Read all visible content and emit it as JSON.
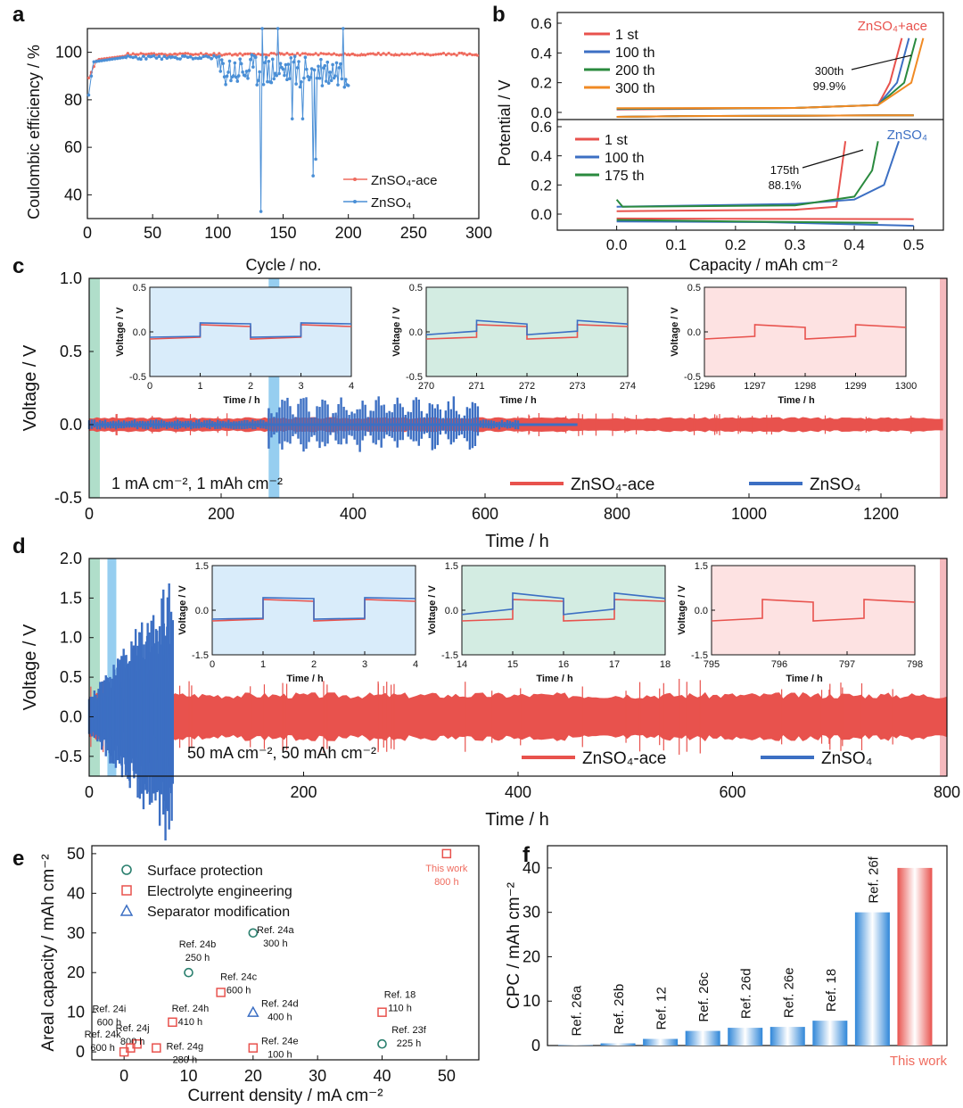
{
  "colors": {
    "red": "#e8524d",
    "blue": "#3c6fc3",
    "green": "#2a8a3e",
    "orange": "#f08a24",
    "teal": "#2a7f6e",
    "ce_red": "#ef6b5e",
    "ce_blue": "#4a8fd6"
  },
  "panel_a": {
    "label": "a",
    "xlabel": "Cycle / no.",
    "ylabel": "Coulombic efficiency / %",
    "xticks": [
      "0",
      "50",
      "100",
      "150",
      "200",
      "250",
      "300"
    ],
    "yticks": [
      "40",
      "60",
      "80",
      "100"
    ],
    "legend": [
      {
        "name": "ZnSO₄-ace"
      },
      {
        "name": "ZnSO₄"
      }
    ]
  },
  "panel_b": {
    "label": "b",
    "ylabel": "Potential / V",
    "xlabel": "Capacity / mAh cm⁻²",
    "xticks": [
      "0.0",
      "0.1",
      "0.2",
      "0.3",
      "0.4",
      "0.5"
    ],
    "top_yticks": [
      "0.0",
      "0.2",
      "0.4",
      "0.6"
    ],
    "bottom_yticks": [
      "0.0",
      "0.2",
      "0.4",
      "0.6"
    ],
    "top_title": "ZnSO₄+ace",
    "bottom_title": "ZnSO₄",
    "top_legend": [
      "1 st",
      "100 th",
      "200 th",
      "300 th"
    ],
    "bottom_legend": [
      "1 st",
      "100 th",
      "175 th"
    ],
    "top_annot": [
      "300th",
      "99.9%"
    ],
    "bottom_annot": [
      "175th",
      "88.1%"
    ]
  },
  "panel_c": {
    "label": "c",
    "ylabel": "Voltage / V",
    "xlabel": "Time / h",
    "xticks": [
      "0",
      "200",
      "400",
      "600",
      "800",
      "1000",
      "1200"
    ],
    "yticks": [
      "-0.5",
      "0.0",
      "0.5",
      "1.0"
    ],
    "condition": "1 mA cm⁻², 1 mAh cm⁻²",
    "legend": [
      "ZnSO₄-ace",
      "ZnSO₄"
    ],
    "insets": [
      {
        "xticks": [
          "0",
          "1",
          "2",
          "3",
          "4"
        ],
        "yticks": [
          "0.5",
          "0.0",
          "-0.5"
        ],
        "xlabel": "Time / h",
        "ylabel": "Voltage / V"
      },
      {
        "xticks": [
          "270",
          "271",
          "272",
          "273",
          "274"
        ],
        "yticks": [
          "0.5",
          "0.0",
          "-0.5"
        ],
        "xlabel": "Time / h",
        "ylabel": "Voltage / V"
      },
      {
        "xticks": [
          "1296",
          "1297",
          "1298",
          "1299",
          "1300"
        ],
        "yticks": [
          "0.5",
          "0.0",
          "-0.5"
        ],
        "xlabel": "Time / h",
        "ylabel": "Voltage / V"
      }
    ]
  },
  "panel_d": {
    "label": "d",
    "ylabel": "Voltage / V",
    "xlabel": "Time / h",
    "xticks": [
      "0",
      "200",
      "400",
      "600",
      "800"
    ],
    "yticks": [
      "-0.5",
      "0.0",
      "0.5",
      "1.0",
      "1.5",
      "2.0"
    ],
    "condition": "50 mA cm⁻², 50 mAh cm⁻²",
    "legend": [
      "ZnSO₄-ace",
      "ZnSO₄"
    ],
    "insets": [
      {
        "xticks": [
          "0",
          "1",
          "2",
          "3",
          "4"
        ],
        "yticks": [
          "1.5",
          "0.0",
          "-1.5"
        ],
        "xlabel": "Time / h",
        "ylabel": "Voltage / V"
      },
      {
        "xticks": [
          "14",
          "15",
          "16",
          "17",
          "18"
        ],
        "yticks": [
          "1.5",
          "0.0",
          "-1.5"
        ],
        "xlabel": "Time / h",
        "ylabel": "Voltage / V"
      },
      {
        "xticks": [
          "795",
          "796",
          "797",
          "798"
        ],
        "yticks": [
          "1.5",
          "0.0",
          "-1.5"
        ],
        "xlabel": "Time / h",
        "ylabel": "Voltage / V"
      }
    ]
  },
  "chart_data": [
    {
      "type": "scatter",
      "id": "e",
      "title": "",
      "xlabel": "Current density / mA cm⁻²",
      "ylabel": "Areal capacity / mAh cm⁻²",
      "xlim": [
        -5,
        55
      ],
      "ylim": [
        -2,
        52
      ],
      "xticks": [
        "0",
        "10",
        "20",
        "30",
        "40",
        "50"
      ],
      "yticks": [
        "0",
        "10",
        "20",
        "30",
        "40",
        "50"
      ],
      "legend": [
        "Surface protection",
        "Electrolyte engineering",
        "Separator modification"
      ],
      "points": [
        {
          "x": 50,
          "y": 50,
          "cat": "electrolyte",
          "label": "This work",
          "sub": "800 h"
        },
        {
          "x": 20,
          "y": 30,
          "cat": "surface",
          "label": "Ref. 24a",
          "sub": "300 h"
        },
        {
          "x": 10,
          "y": 20,
          "cat": "surface",
          "label": "Ref. 24b",
          "sub": "250 h"
        },
        {
          "x": 15,
          "y": 15,
          "cat": "electrolyte",
          "label": "Ref. 24c",
          "sub": "600 h"
        },
        {
          "x": 20,
          "y": 10,
          "cat": "separator",
          "label": "Ref. 24d",
          "sub": "400 h"
        },
        {
          "x": 20,
          "y": 1,
          "cat": "electrolyte",
          "label": "Ref. 24e",
          "sub": "100 h"
        },
        {
          "x": 40,
          "y": 10,
          "cat": "electrolyte",
          "label": "Ref. 18",
          "sub": "110 h"
        },
        {
          "x": 40,
          "y": 2,
          "cat": "surface",
          "label": "Ref. 23f",
          "sub": "225 h"
        },
        {
          "x": 7.5,
          "y": 7.5,
          "cat": "electrolyte",
          "label": "Ref. 24h",
          "sub": "410 h"
        },
        {
          "x": 5,
          "y": 1,
          "cat": "electrolyte",
          "label": "Ref. 24g",
          "sub": "280 h"
        },
        {
          "x": 2,
          "y": 2,
          "cat": "electrolyte",
          "label": "Ref. 24j",
          "sub": "800 h"
        },
        {
          "x": 1,
          "y": 1,
          "cat": "electrolyte",
          "label": "Ref. 24i",
          "sub": "600 h"
        },
        {
          "x": 0,
          "y": 0,
          "cat": "electrolyte",
          "label": "Ref. 24k",
          "sub": "600 h"
        }
      ]
    },
    {
      "type": "bar",
      "id": "f",
      "title": "",
      "xlabel": "",
      "ylabel": "CPC / mAh cm⁻²",
      "ylim": [
        0,
        45
      ],
      "yticks": [
        "0",
        "10",
        "20",
        "30",
        "40"
      ],
      "categories": [
        "Ref. 26a",
        "Ref. 26b",
        "Ref. 12",
        "Ref. 26c",
        "Ref. 26d",
        "Ref. 26e",
        "Ref. 18",
        "Ref. 26f",
        "This work"
      ],
      "values": [
        0.1,
        0.5,
        1.5,
        3.3,
        4.0,
        4.2,
        5.6,
        30,
        40
      ]
    }
  ]
}
